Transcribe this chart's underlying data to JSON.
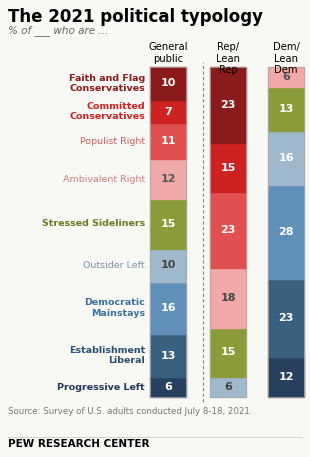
{
  "title": "The 2021 political typology",
  "subtitle": "% of ___ who are ...",
  "categories": [
    "Faith and Flag\nConservatives",
    "Committed\nConservatives",
    "Populist Right",
    "Ambivalent Right",
    "Stressed Sideliners",
    "Outsider Left",
    "Democratic\nMainstays",
    "Establishment\nLiberal",
    "Progressive Left"
  ],
  "cat_colors": [
    "#8B1A1A",
    "#CC2222",
    "#E05050",
    "#F0A8A8",
    "#8B9B3A",
    "#A0B8CC",
    "#6090B8",
    "#3A6080",
    "#284060"
  ],
  "cat_label_colors": [
    "#8B1A1A",
    "#CC2222",
    "#D06060",
    "#D08080",
    "#6B7B2A",
    "#8090A8",
    "#4070A0",
    "#2A5070",
    "#243858"
  ],
  "cat_label_bold": [
    true,
    true,
    false,
    false,
    true,
    false,
    true,
    true,
    true
  ],
  "general_public": [
    10,
    7,
    11,
    12,
    15,
    10,
    16,
    13,
    6
  ],
  "general_public_text_colors": [
    "white",
    "white",
    "white",
    "#555555",
    "white",
    "#444444",
    "white",
    "white",
    "white"
  ],
  "rep_lean_rep": [
    23,
    15,
    23,
    18,
    15,
    6
  ],
  "rep_lean_rep_colors": [
    "#8B1A1A",
    "#CC2222",
    "#E05050",
    "#F0A8A8",
    "#8B9B3A",
    "#A0B8CC"
  ],
  "rep_lean_rep_text_colors": [
    "white",
    "white",
    "white",
    "#444444",
    "white",
    "#444444"
  ],
  "dem_lean_dem": [
    6,
    13,
    16,
    28,
    23,
    12
  ],
  "dem_lean_dem_colors": [
    "#F0A8A8",
    "#8B9B3A",
    "#A0B8CC",
    "#6090B8",
    "#3A6080",
    "#284060"
  ],
  "dem_lean_dem_text_colors": [
    "#555555",
    "white",
    "white",
    "white",
    "white",
    "white"
  ],
  "col_headers": [
    "General\npublic",
    "Rep/\nLean\nRep",
    "Dem/\nLean\nDem"
  ],
  "source": "Source: Survey of U.S. adults conducted July 8-18, 2021.",
  "footer": "PEW RESEARCH CENTER",
  "bg_color": "#F8F8F5",
  "bar_bg_color": "#E8E8E5"
}
